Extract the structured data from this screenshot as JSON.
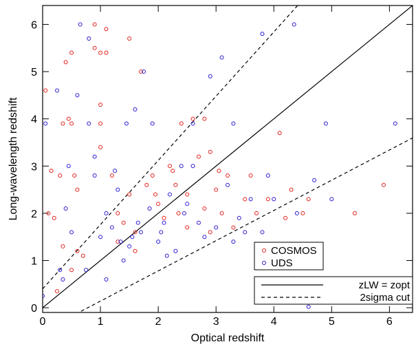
{
  "chart_data": {
    "type": "scatter",
    "xlabel": "Optical redshift",
    "ylabel": "Long-wavelength redshift",
    "xlim": [
      0,
      6.4
    ],
    "ylim": [
      -0.1,
      6.4
    ],
    "xticks": [
      0,
      1,
      2,
      3,
      4,
      5,
      6
    ],
    "yticks": [
      0,
      1,
      2,
      3,
      4,
      5,
      6
    ],
    "legend_loc": "lower right",
    "series": [
      {
        "name": "COSMOS",
        "color": "#e0201b",
        "x": [
          0.05,
          0.15,
          0.1,
          0.2,
          0.3,
          0.35,
          0.4,
          0.5,
          0.45,
          0.5,
          0.6,
          0.6,
          0.7,
          0.9,
          0.9,
          1.0,
          1.1,
          1.1,
          1.0,
          1.0,
          1.0,
          1.2,
          1.3,
          1.4,
          1.5,
          1.5,
          1.6,
          1.7,
          1.8,
          1.9,
          2.0,
          2.1,
          2.2,
          2.3,
          2.4,
          2.5,
          2.6,
          2.7,
          2.8,
          2.9,
          3.0,
          3.1,
          3.2,
          3.3,
          3.5,
          3.7,
          3.9,
          4.1,
          4.3,
          4.5,
          5.4,
          5.9,
          0.25,
          0.5,
          1.3,
          1.6,
          2.5,
          2.8,
          0.35,
          0.55,
          2.25,
          1.95,
          2.35,
          3.05,
          3.6,
          4.2,
          4.6,
          2.9
        ],
        "y": [
          4.6,
          2.9,
          2.0,
          1.9,
          2.8,
          1.3,
          5.2,
          5.4,
          4.0,
          3.9,
          2.5,
          1.2,
          1.1,
          5.5,
          6.0,
          5.4,
          5.9,
          5.4,
          4.3,
          3.9,
          3.4,
          2.8,
          2.0,
          1.8,
          5.7,
          2.4,
          1.6,
          5.0,
          2.6,
          2.8,
          2.2,
          1.9,
          3.0,
          2.6,
          3.9,
          2.4,
          4.0,
          3.2,
          4.0,
          3.3,
          2.5,
          2.0,
          2.8,
          1.7,
          2.3,
          2.0,
          2.3,
          3.7,
          2.5,
          2.0,
          2.0,
          2.6,
          0.35,
          0.8,
          1.4,
          1.2,
          1.7,
          2.1,
          3.9,
          2.8,
          2.9,
          2.4,
          2.0,
          2.9,
          2.8,
          1.9,
          2.3,
          1.6
        ]
      },
      {
        "name": "UDS",
        "color": "#2a1bd0",
        "x": [
          0,
          0.05,
          0.25,
          0.3,
          0.35,
          0.4,
          0.45,
          0.5,
          0.6,
          0.65,
          0.8,
          0.8,
          0.9,
          0.75,
          1.0,
          1.1,
          1.1,
          1.2,
          1.3,
          1.4,
          1.45,
          1.5,
          1.6,
          1.7,
          1.75,
          1.85,
          1.9,
          2.0,
          2.1,
          2.2,
          2.3,
          2.4,
          2.5,
          2.6,
          2.7,
          2.8,
          2.9,
          3.0,
          3.1,
          3.2,
          3.3,
          3.4,
          3.5,
          3.6,
          3.8,
          3.8,
          3.9,
          4.0,
          4.2,
          4.35,
          4.4,
          4.6,
          4.7,
          4.9,
          5.0,
          6.1,
          1.35,
          1.55,
          1.65,
          2.05,
          2.45,
          2.15,
          0.9,
          1.25,
          3.3,
          2.6,
          3.9
        ],
        "y": [
          0.25,
          3.9,
          4.6,
          0.8,
          0.6,
          2.1,
          3.0,
          1.6,
          4.5,
          6.0,
          5.7,
          3.9,
          2.8,
          0.8,
          1.5,
          2.0,
          0.6,
          1.7,
          2.5,
          1.0,
          3.9,
          1.3,
          4.2,
          1.6,
          5.0,
          2.1,
          3.9,
          1.4,
          1.8,
          2.4,
          1.2,
          3.0,
          2.2,
          3.9,
          1.8,
          1.5,
          4.9,
          1.7,
          5.3,
          2.6,
          3.9,
          1.9,
          1.6,
          2.3,
          5.8,
          1.6,
          2.8,
          2.3,
          1.1,
          6.0,
          2.0,
          0.02,
          2.7,
          3.9,
          2.3,
          3.9,
          1.4,
          1.5,
          1.8,
          1.6,
          2.0,
          1.1,
          3.2,
          2.9,
          1.4,
          3.0,
          0.9
        ]
      }
    ],
    "lines": [
      {
        "name": "zLW = zopt",
        "style": "solid",
        "slope": 1,
        "intercept": 0
      },
      {
        "name": "2sigma cut",
        "style": "dashed",
        "slope": 1.36,
        "intercept": 0.4
      },
      {
        "style": "dashed",
        "slope": 0.64,
        "intercept": -0.5
      }
    ]
  }
}
